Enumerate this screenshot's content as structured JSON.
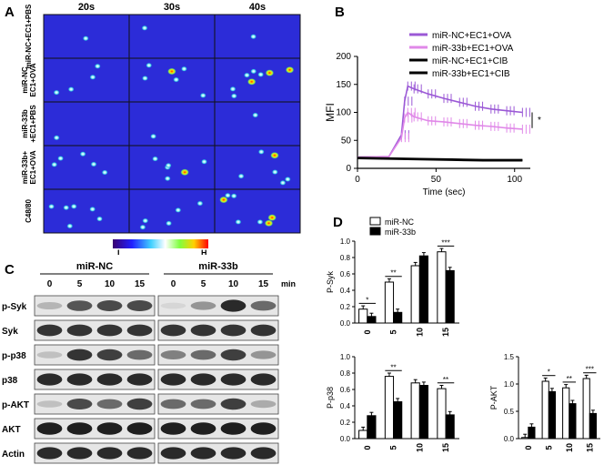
{
  "panels": {
    "A": {
      "letter": "A",
      "columns": [
        "20s",
        "30s",
        "40s"
      ],
      "rows": [
        "miR-NC+EC1+PBS",
        "miR-NC EC1+OVA",
        "miR-33b +EC1+PBS",
        "miR-33b+ EC1+OVA",
        "C48/80"
      ],
      "colorbar": {
        "low": "L",
        "high": "H"
      }
    },
    "B": {
      "letter": "B",
      "legend": [
        "miR-NC+EC1+OVA",
        "miR-33b+EC1+OVA",
        "miR-NC+EC1+CIB",
        "miR-33b+EC1+CIB"
      ],
      "significance": "*",
      "colors": {
        "nc_ova": "#9b59d6",
        "b33_ova": "#e088e8",
        "cib": "#000000"
      }
    },
    "C": {
      "letter": "C",
      "groups": [
        "miR-NC",
        "miR-33b"
      ],
      "times": [
        "0",
        "5",
        "10",
        "15"
      ],
      "unit": "min",
      "proteins": [
        "p-Syk",
        "Syk",
        "p-p38",
        "p38",
        "p-AKT",
        "AKT",
        "Actin"
      ]
    },
    "D": {
      "letter": "D",
      "legend": [
        "miR-NC",
        "miR-33b"
      ]
    }
  },
  "chart_data": [
    {
      "type": "line",
      "xlabel": "Time (sec)",
      "ylabel": "MFI",
      "xlim": [
        0,
        110
      ],
      "ylim": [
        0,
        200
      ],
      "xticks": [
        0,
        50,
        100
      ],
      "yticks": [
        0,
        50,
        100,
        150,
        200
      ],
      "series": [
        {
          "name": "miR-NC+EC1+OVA",
          "x": [
            0,
            20,
            28,
            30,
            32,
            36,
            45,
            55,
            65,
            75,
            85,
            95,
            105
          ],
          "y": [
            20,
            21,
            60,
            120,
            147,
            142,
            133,
            125,
            118,
            111,
            106,
            103,
            100
          ]
        },
        {
          "name": "miR-33b+EC1+OVA",
          "x": [
            0,
            20,
            28,
            30,
            32,
            36,
            45,
            55,
            65,
            75,
            85,
            95,
            105
          ],
          "y": [
            20,
            21,
            55,
            90,
            100,
            92,
            85,
            83,
            80,
            77,
            75,
            72,
            70
          ]
        },
        {
          "name": "miR-NC+EC1+CIB",
          "x": [
            0,
            20,
            40,
            60,
            80,
            105
          ],
          "y": [
            19,
            18,
            17,
            16,
            15,
            15
          ]
        },
        {
          "name": "miR-33b+EC1+CIB",
          "x": [
            0,
            20,
            40,
            60,
            80,
            105
          ],
          "y": [
            18,
            17,
            16,
            15,
            14,
            14
          ]
        }
      ]
    },
    {
      "type": "bar",
      "ylabel": "P-Syk",
      "categories": [
        "0",
        "5",
        "10",
        "15"
      ],
      "ylim": [
        0,
        1.0
      ],
      "yticks": [
        "0.0",
        "0.2",
        "0.4",
        "0.6",
        "0.8",
        "1.0"
      ],
      "series": [
        {
          "name": "miR-NC",
          "values": [
            0.17,
            0.5,
            0.7,
            0.87
          ]
        },
        {
          "name": "miR-33b",
          "values": [
            0.08,
            0.13,
            0.82,
            0.64
          ]
        }
      ],
      "significance": [
        "*",
        "**",
        "",
        "***"
      ]
    },
    {
      "type": "bar",
      "ylabel": "P-p38",
      "categories": [
        "0",
        "5",
        "10",
        "15"
      ],
      "ylim": [
        0,
        1.0
      ],
      "yticks": [
        "0.0",
        "0.2",
        "0.4",
        "0.6",
        "0.8",
        "1.0"
      ],
      "series": [
        {
          "name": "miR-NC",
          "values": [
            0.1,
            0.76,
            0.68,
            0.61
          ]
        },
        {
          "name": "miR-33b",
          "values": [
            0.28,
            0.45,
            0.65,
            0.29
          ]
        }
      ],
      "significance": [
        "",
        "**",
        "",
        "**"
      ]
    },
    {
      "type": "bar",
      "ylabel": "P-AKT",
      "categories": [
        "0",
        "5",
        "10",
        "15"
      ],
      "ylim": [
        0,
        1.5
      ],
      "yticks": [
        "0.0",
        "0.5",
        "1.0",
        "1.5"
      ],
      "series": [
        {
          "name": "miR-NC",
          "values": [
            0.02,
            1.05,
            0.93,
            1.1
          ]
        },
        {
          "name": "miR-33b",
          "values": [
            0.21,
            0.86,
            0.64,
            0.46
          ]
        }
      ],
      "significance": [
        "",
        "*",
        "**",
        "***"
      ]
    }
  ]
}
